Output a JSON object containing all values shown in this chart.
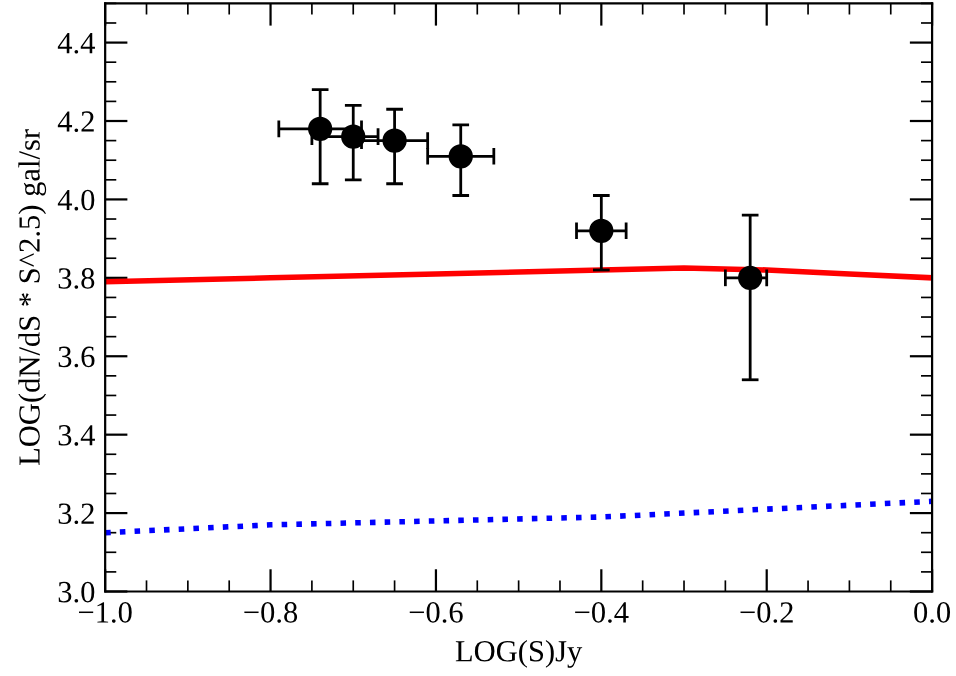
{
  "chart_data": {
    "type": "scatter",
    "xlabel": "LOG(S)Jy",
    "ylabel": "LOG(dN/dS * S^2.5) gal/sr",
    "xlim": [
      -1.0,
      0.0
    ],
    "xticks": [
      {
        "value": -1.0,
        "label": "−1.0"
      },
      {
        "value": -0.8,
        "label": "−0.8"
      },
      {
        "value": -0.6,
        "label": "−0.6"
      },
      {
        "value": -0.4,
        "label": "−0.4"
      },
      {
        "value": -0.2,
        "label": "−0.2"
      },
      {
        "value": 0.0,
        "label": "0.0"
      }
    ],
    "ylim": [
      3.0,
      4.5
    ],
    "yticks": [
      {
        "value": 3.0,
        "label": "3.0"
      },
      {
        "value": 3.2,
        "label": "3.2"
      },
      {
        "value": 3.4,
        "label": "3.4"
      },
      {
        "value": 3.6,
        "label": "3.6"
      },
      {
        "value": 3.8,
        "label": "3.8"
      },
      {
        "value": 4.0,
        "label": "4.0"
      },
      {
        "value": 4.2,
        "label": "4.2"
      },
      {
        "value": 4.4,
        "label": "4.4"
      }
    ],
    "grid": false,
    "series": [
      {
        "type": "line",
        "color": "#ff0000",
        "line_style": "solid",
        "marker": "none",
        "x": [
          -1.0,
          -0.8,
          -0.6,
          -0.4,
          -0.3,
          -0.2,
          -0.1,
          0.0
        ],
        "values": [
          3.79,
          3.8,
          3.81,
          3.82,
          3.825,
          3.82,
          3.81,
          3.8
        ]
      },
      {
        "type": "line",
        "color": "#0000ff",
        "line_style": "dotted",
        "marker": "none",
        "x": [
          -1.0,
          -0.8,
          -0.6,
          -0.4,
          -0.2,
          0.0
        ],
        "values": [
          3.15,
          3.17,
          3.18,
          3.19,
          3.21,
          3.23
        ]
      },
      {
        "color": "#000000",
        "marker": "circle",
        "x": [
          -0.74,
          -0.7,
          -0.65,
          -0.57,
          -0.4,
          -0.22
        ],
        "values": [
          4.18,
          4.16,
          4.15,
          4.11,
          3.92,
          3.8
        ],
        "errors": [
          [
            4.04,
            4.28
          ],
          [
            4.05,
            4.24
          ],
          [
            4.04,
            4.23
          ],
          [
            4.01,
            4.19
          ],
          [
            3.82,
            4.01
          ],
          [
            3.54,
            3.96
          ]
        ],
        "xerrors": [
          [
            -0.79,
            -0.69
          ],
          [
            -0.75,
            -0.67
          ],
          [
            -0.69,
            -0.61
          ],
          [
            -0.61,
            -0.53
          ],
          [
            -0.43,
            -0.37
          ],
          [
            -0.25,
            -0.2
          ]
        ]
      }
    ]
  }
}
